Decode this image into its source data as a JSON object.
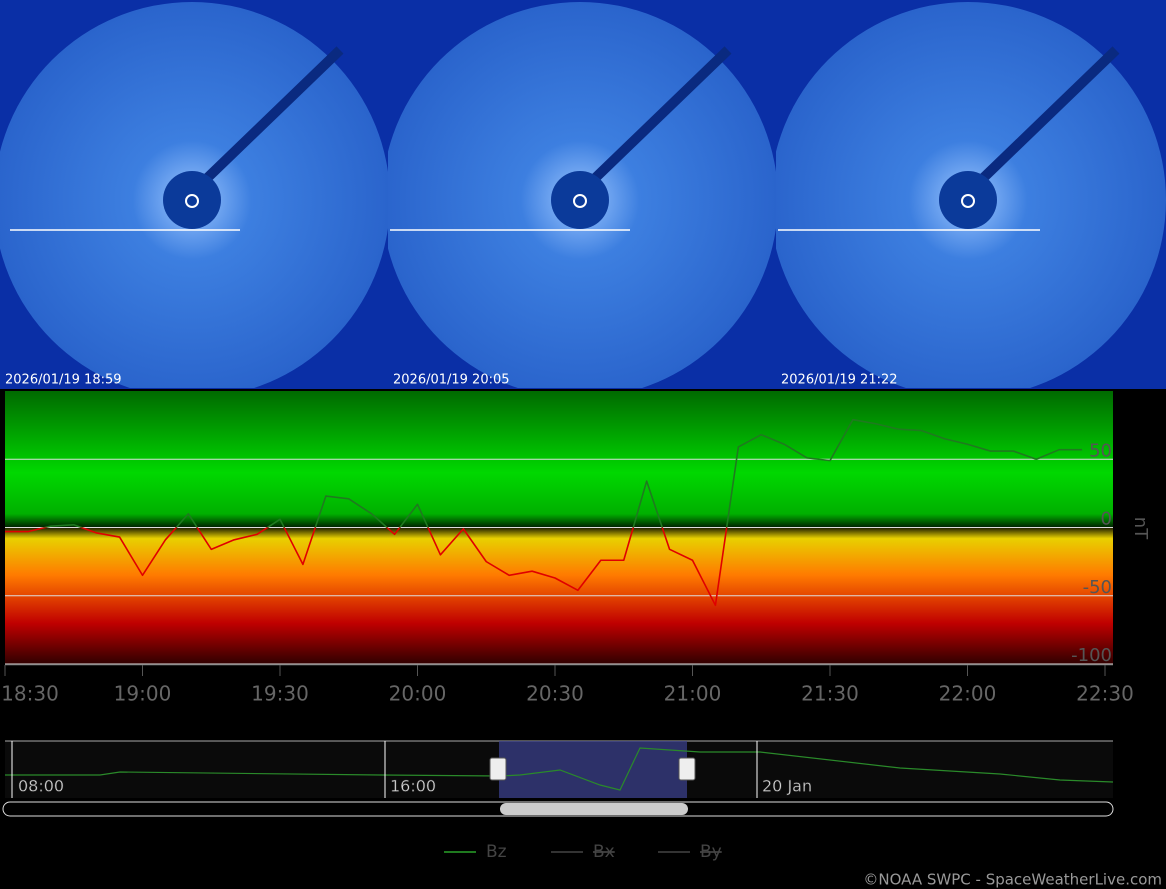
{
  "images": [
    {
      "timestamp": "2026/01/19 18:59"
    },
    {
      "timestamp": "2026/01/19 20:05"
    },
    {
      "timestamp": "2026/01/19 21:22"
    }
  ],
  "chart_data": {
    "type": "line",
    "y_label": "nT",
    "x": [
      1110,
      1115,
      1120,
      1125,
      1130,
      1135,
      1140,
      1145,
      1150,
      1155,
      1160,
      1165,
      1170,
      1175,
      1180,
      1185,
      1190,
      1195,
      1200,
      1205,
      1210,
      1215,
      1220,
      1225,
      1230,
      1235,
      1240,
      1245,
      1250,
      1255,
      1260,
      1265,
      1270,
      1275,
      1280,
      1285,
      1290,
      1295,
      1300,
      1305,
      1310,
      1315,
      1320,
      1325,
      1330,
      1335,
      1340,
      1345
    ],
    "series": [
      {
        "name": "Bz",
        "color": "#1f7a1f",
        "negative_color": "#e00000",
        "values": [
          -3,
          -3,
          1,
          2,
          -4,
          -7,
          -35,
          -9,
          10,
          -16,
          -9,
          -5,
          6,
          -27,
          23,
          21,
          10,
          -5,
          17,
          -20,
          -1,
          -25,
          -35,
          -32,
          -37,
          -46,
          -24,
          -24,
          34,
          -16,
          -24,
          -57,
          59,
          68,
          61,
          51,
          49,
          79,
          76,
          72,
          71,
          65,
          61,
          56,
          56,
          50,
          57,
          57
        ]
      }
    ],
    "xlim": [
      1110,
      1350
    ],
    "xticks": [
      {
        "value": 1110,
        "label": "18:30"
      },
      {
        "value": 1140,
        "label": "19:00"
      },
      {
        "value": 1170,
        "label": "19:30"
      },
      {
        "value": 1200,
        "label": "20:00"
      },
      {
        "value": 1230,
        "label": "20:30"
      },
      {
        "value": 1260,
        "label": "21:00"
      },
      {
        "value": 1290,
        "label": "21:30"
      },
      {
        "value": 1320,
        "label": "22:00"
      },
      {
        "value": 1350,
        "label": "22:30"
      }
    ],
    "ylim": [
      -100,
      100
    ],
    "yticks": [
      -100,
      -50,
      0,
      50
    ],
    "grid": true,
    "legend": [
      {
        "name": "Bz",
        "hidden": false
      },
      {
        "name": "Bx",
        "hidden": true
      },
      {
        "name": "By",
        "hidden": true
      }
    ]
  },
  "navigator": {
    "labels": [
      "08:00",
      "16:00",
      "20 Jan"
    ]
  },
  "credit": "©NOAA SWPC - SpaceWeatherLive.com"
}
